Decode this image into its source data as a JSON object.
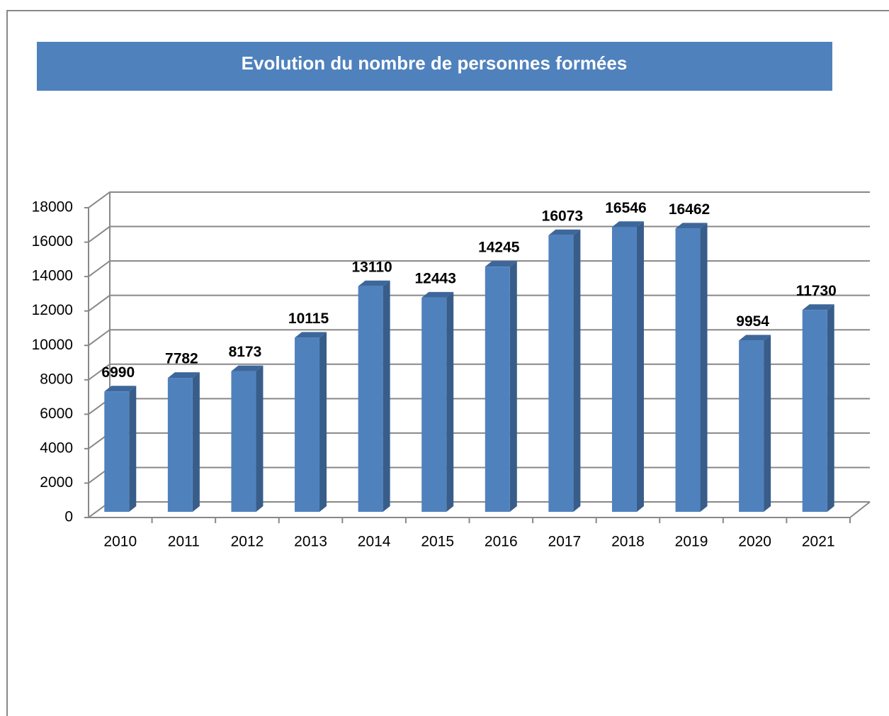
{
  "chart_data": {
    "type": "bar",
    "title": "Evolution du nombre de personnes formées",
    "categories": [
      "2010",
      "2011",
      "2012",
      "2013",
      "2014",
      "2015",
      "2016",
      "2017",
      "2018",
      "2019",
      "2020",
      "2021"
    ],
    "values": [
      6990,
      7782,
      8173,
      10115,
      13110,
      12443,
      14245,
      16073,
      16546,
      16462,
      9954,
      11730
    ],
    "color": "#4f81bd",
    "ylim": [
      0,
      18000
    ],
    "yticks": [
      0,
      2000,
      4000,
      6000,
      8000,
      10000,
      12000,
      14000,
      16000,
      18000
    ],
    "grid": true
  }
}
